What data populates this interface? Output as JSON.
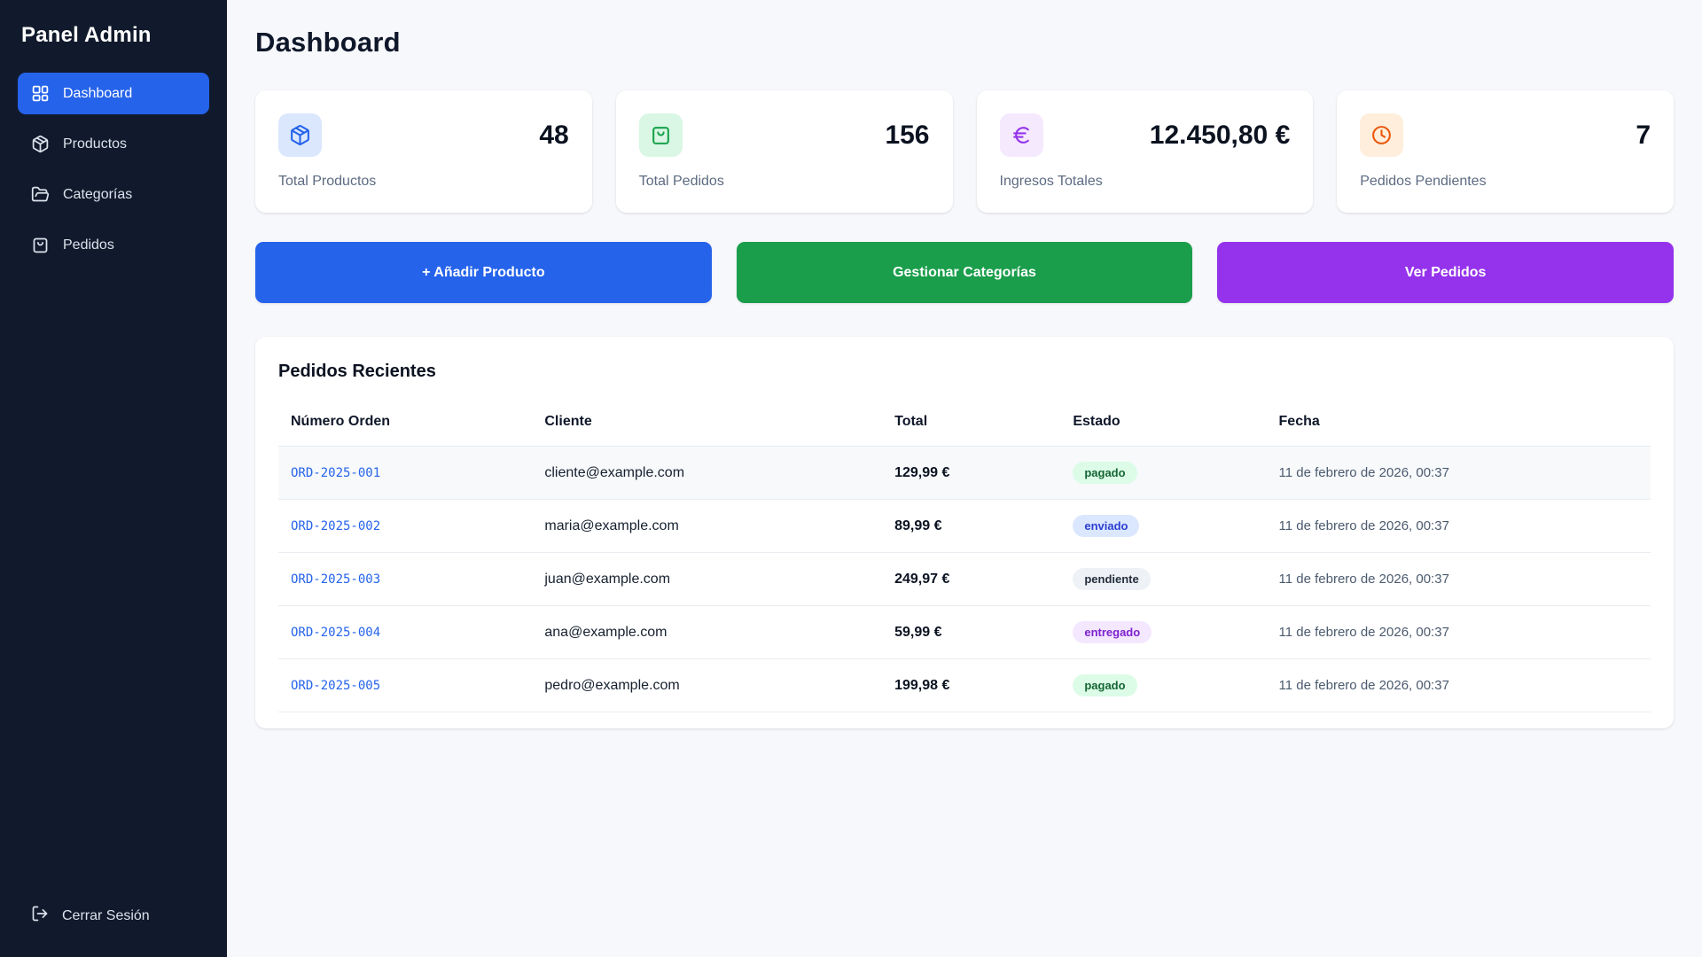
{
  "sidebar": {
    "title": "Panel Admin",
    "items": [
      {
        "label": "Dashboard",
        "icon": "dashboard-icon",
        "active": true
      },
      {
        "label": "Productos",
        "icon": "package-icon",
        "active": false
      },
      {
        "label": "Categorías",
        "icon": "folder-open-icon",
        "active": false
      },
      {
        "label": "Pedidos",
        "icon": "shopping-bag-icon",
        "active": false
      }
    ],
    "logout_label": "Cerrar Sesión"
  },
  "header": {
    "title": "Dashboard"
  },
  "stats": [
    {
      "label": "Total Productos",
      "value": "48",
      "icon": "package-icon",
      "accent": "#2563eb",
      "tile_bg": "#dbe7fd"
    },
    {
      "label": "Total Pedidos",
      "value": "156",
      "icon": "shopping-bag-icon",
      "accent": "#16a34a",
      "tile_bg": "#d9f7e4"
    },
    {
      "label": "Ingresos Totales",
      "value": "12.450,80 €",
      "icon": "euro-icon",
      "accent": "#9333ea",
      "tile_bg": "#f5e9fe"
    },
    {
      "label": "Pedidos Pendientes",
      "value": "7",
      "icon": "clock-icon",
      "accent": "#ea580c",
      "tile_bg": "#feeedb"
    }
  ],
  "actions": [
    {
      "label": "+ Añadir Producto",
      "color": "#2563eb"
    },
    {
      "label": "Gestionar Categorías",
      "color": "#1a9e4b"
    },
    {
      "label": "Ver Pedidos",
      "color": "#9533ec"
    }
  ],
  "recent_orders": {
    "title": "Pedidos Recientes",
    "columns": [
      "Número Orden",
      "Cliente",
      "Total",
      "Estado",
      "Fecha"
    ],
    "rows": [
      {
        "order": "ORD-2025-001",
        "client": "cliente@example.com",
        "total": "129,99 €",
        "status": "pagado",
        "date": "11 de febrero de 2026, 00:37",
        "highlighted": true
      },
      {
        "order": "ORD-2025-002",
        "client": "maria@example.com",
        "total": "89,99 €",
        "status": "enviado",
        "date": "11 de febrero de 2026, 00:37",
        "highlighted": false
      },
      {
        "order": "ORD-2025-003",
        "client": "juan@example.com",
        "total": "249,97 €",
        "status": "pendiente",
        "date": "11 de febrero de 2026, 00:37",
        "highlighted": false
      },
      {
        "order": "ORD-2025-004",
        "client": "ana@example.com",
        "total": "59,99 €",
        "status": "entregado",
        "date": "11 de febrero de 2026, 00:37",
        "highlighted": false
      },
      {
        "order": "ORD-2025-005",
        "client": "pedro@example.com",
        "total": "199,98 €",
        "status": "pagado",
        "date": "11 de febrero de 2026, 00:37",
        "highlighted": false
      }
    ],
    "status_styles": {
      "pagado": {
        "bg": "#dcfce7",
        "text": "#166534"
      },
      "enviado": {
        "bg": "#dbe7fe",
        "text": "#2b3fd0"
      },
      "pendiente": {
        "bg": "#eef1f5",
        "text": "#232e3d"
      },
      "entregado": {
        "bg": "#f3e8ff",
        "text": "#7e22ce"
      }
    }
  }
}
